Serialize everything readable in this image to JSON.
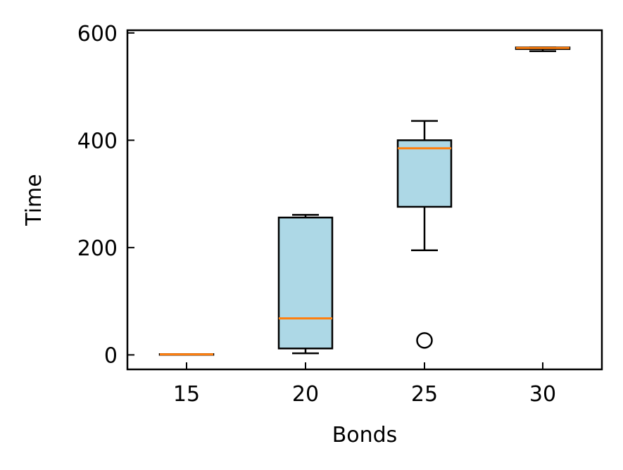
{
  "chart_data": {
    "type": "box",
    "title": "",
    "xlabel": "Bonds",
    "ylabel": "Time",
    "categories": [
      "15",
      "20",
      "25",
      "30"
    ],
    "yticks": [
      "0",
      "200",
      "400",
      "600"
    ],
    "ylim": [
      -27,
      605
    ],
    "boxes": [
      {
        "category": "15",
        "whisker_low": 0.5,
        "q1": 0.5,
        "median": 1,
        "q3": 1.5,
        "whisker_high": 1.5,
        "outliers": []
      },
      {
        "category": "20",
        "whisker_low": 3,
        "q1": 12,
        "median": 68,
        "q3": 256,
        "whisker_high": 261,
        "outliers": []
      },
      {
        "category": "25",
        "whisker_low": 195,
        "q1": 276,
        "median": 385,
        "q3": 400,
        "whisker_high": 436,
        "outliers": [
          27
        ]
      },
      {
        "category": "30",
        "whisker_low": 566,
        "q1": 570,
        "median": 572,
        "q3": 573,
        "whisker_high": 573,
        "outliers": []
      }
    ],
    "grid": false,
    "legend": "none"
  },
  "colors": {
    "box_fill": "#add8e6",
    "box_edge": "#000000",
    "median": "#ff7f0e",
    "axis": "#000000"
  }
}
